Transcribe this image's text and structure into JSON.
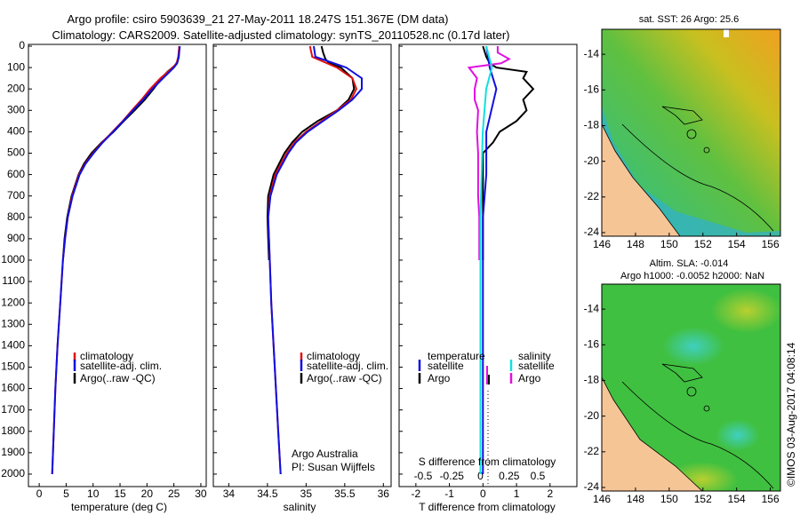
{
  "title_line1": "Argo profile: csiro 5903639_21 27-May-2011 18.247S 151.367E (DM data)",
  "title_line2": "Climatology: CARS2009. Satellite-adjusted climatology: synTS_20110528.nc (0.17d later)",
  "colors": {
    "climatology": "#e01010",
    "satellite": "#1010e0",
    "argo": "#000000",
    "salinity_satellite": "#10e0e0",
    "salinity_argo": "#e010e0",
    "land": "#f6c596"
  },
  "chart_data": [
    {
      "type": "line",
      "id": "temperature",
      "xlabel": "temperature (deg C)",
      "xlim": [
        -2,
        31
      ],
      "ylim": [
        0,
        2050
      ],
      "yticks": [
        0,
        100,
        200,
        300,
        400,
        500,
        600,
        700,
        800,
        900,
        1000,
        1100,
        1200,
        1300,
        1400,
        1500,
        1600,
        1700,
        1800,
        1900,
        2000
      ],
      "xticks": [
        0,
        5,
        10,
        15,
        20,
        25,
        30
      ],
      "legend": [
        "climatology",
        "satellite-adj. clim.",
        "Argo(..raw -QC)"
      ],
      "series": [
        {
          "name": "climatology",
          "depth": [
            0,
            50,
            80,
            100,
            150,
            200,
            250,
            300,
            350,
            400,
            450,
            500,
            550,
            600,
            700,
            800,
            900,
            1000,
            1200,
            1400,
            1600,
            1800,
            2000
          ],
          "values": [
            26.0,
            25.8,
            25.5,
            24.8,
            22.5,
            20.6,
            19.0,
            17.2,
            15.5,
            13.6,
            11.7,
            10.0,
            8.5,
            7.4,
            6.1,
            5.3,
            4.8,
            4.4,
            3.9,
            3.4,
            3.0,
            2.7,
            2.4
          ]
        },
        {
          "name": "satellite",
          "depth": [
            0,
            50,
            80,
            100,
            150,
            200,
            250,
            300,
            350,
            400,
            450,
            500,
            550,
            600,
            700,
            800,
            900,
            1000,
            1200,
            1400,
            1600,
            1800,
            2000
          ],
          "values": [
            26.1,
            25.9,
            25.6,
            25.0,
            23.0,
            21.0,
            19.3,
            17.4,
            15.6,
            13.7,
            11.8,
            10.1,
            8.6,
            7.5,
            6.2,
            5.3,
            4.8,
            4.4,
            3.9,
            3.4,
            3.0,
            2.7,
            2.4
          ]
        },
        {
          "name": "argo",
          "depth": [
            0,
            50,
            70,
            90,
            120,
            150,
            200,
            250,
            300,
            350,
            400,
            450,
            500,
            550,
            600,
            700,
            800,
            900,
            1000
          ],
          "values": [
            26.0,
            25.9,
            25.7,
            25.2,
            23.8,
            22.7,
            21.2,
            19.6,
            17.7,
            15.7,
            13.8,
            11.6,
            9.7,
            8.3,
            7.3,
            6.0,
            5.2,
            4.7,
            4.4
          ]
        }
      ]
    },
    {
      "type": "line",
      "id": "salinity",
      "xlabel": "salinity",
      "xlim": [
        33.8,
        36.1
      ],
      "ylim": [
        0,
        2050
      ],
      "xticks": [
        34,
        34.5,
        35,
        35.5,
        36
      ],
      "legend": [
        "climatology",
        "satellite-adj. clim.",
        "Argo(..raw -QC)"
      ],
      "annotation": [
        "Argo Australia",
        "PI: Susan Wijffels"
      ],
      "series": [
        {
          "name": "climatology",
          "depth": [
            0,
            50,
            100,
            150,
            200,
            250,
            300,
            350,
            400,
            450,
            500,
            600,
            700,
            800,
            900,
            1000,
            1200,
            1400,
            1600,
            1800,
            2000
          ],
          "values": [
            35.05,
            35.08,
            35.4,
            35.6,
            35.65,
            35.58,
            35.4,
            35.2,
            35.0,
            34.85,
            34.75,
            34.6,
            34.53,
            34.51,
            34.52,
            34.53,
            34.55,
            34.58,
            34.61,
            34.64,
            34.67
          ]
        },
        {
          "name": "satellite",
          "depth": [
            0,
            50,
            100,
            150,
            200,
            250,
            300,
            350,
            400,
            450,
            500,
            600,
            700,
            800,
            900,
            1000,
            1200,
            1400,
            1600,
            1800,
            2000
          ],
          "values": [
            35.1,
            35.12,
            35.52,
            35.72,
            35.72,
            35.6,
            35.42,
            35.22,
            35.02,
            34.87,
            34.77,
            34.62,
            34.54,
            34.51,
            34.52,
            34.53,
            34.55,
            34.58,
            34.61,
            34.64,
            34.67
          ]
        },
        {
          "name": "argo",
          "depth": [
            0,
            30,
            60,
            80,
            100,
            150,
            200,
            250,
            300,
            350,
            400,
            450,
            500,
            600,
            700,
            800,
            900,
            1000
          ],
          "values": [
            35.2,
            35.22,
            35.25,
            35.3,
            35.45,
            35.6,
            35.62,
            35.55,
            35.4,
            35.15,
            34.95,
            34.82,
            34.72,
            34.58,
            34.51,
            34.5,
            34.51,
            34.52
          ]
        }
      ]
    },
    {
      "type": "line",
      "id": "differences",
      "xlabel": "T difference from climatology",
      "xlabel_top": "S difference from climatology",
      "xlim": [
        -2.5,
        2.8
      ],
      "xticks": [
        -2,
        -1,
        0,
        1,
        2
      ],
      "xticks_top": [
        -0.5,
        -0.25,
        0,
        0.25,
        0.5
      ],
      "ylim": [
        0,
        2050
      ],
      "legend_temperature_title": "temperature",
      "legend_salinity_title": "salinity",
      "legend_items": [
        "satellite",
        "Argo"
      ],
      "series": [
        {
          "name": "T satellite",
          "depth": [
            0,
            100,
            200,
            400,
            600,
            800,
            1000,
            1500,
            2000
          ],
          "values": [
            0.1,
            0.2,
            0.4,
            0.1,
            0.1,
            0.0,
            0.0,
            0.0,
            0.0
          ]
        },
        {
          "name": "T argo",
          "depth": [
            0,
            50,
            80,
            100,
            120,
            150,
            200,
            250,
            300,
            350,
            400,
            450,
            500,
            600,
            700,
            800,
            900,
            1000
          ],
          "values": [
            0.0,
            0.1,
            0.2,
            0.4,
            1.3,
            1.2,
            1.5,
            1.2,
            1.3,
            1.0,
            0.5,
            0.3,
            0.0,
            0.0,
            0.0,
            0.0,
            0.0,
            0.0
          ]
        },
        {
          "name": "S satellite",
          "depth": [
            0,
            100,
            200,
            400,
            600,
            800,
            1000,
            1500,
            2000
          ],
          "values": [
            0.05,
            0.1,
            0.05,
            0.02,
            0.01,
            0.0,
            0.0,
            0.0,
            0.0
          ]
        },
        {
          "name": "S argo",
          "depth": [
            0,
            30,
            60,
            80,
            100,
            150,
            200,
            250,
            300,
            400,
            500,
            600,
            700,
            800,
            900,
            1000
          ],
          "values": [
            0.15,
            0.15,
            0.25,
            0.18,
            -0.1,
            -0.03,
            -0.05,
            -0.05,
            -0.02,
            -0.03,
            -0.02,
            -0.02,
            -0.02,
            -0.01,
            -0.01,
            -0.01
          ]
        }
      ]
    },
    {
      "type": "heatmap",
      "id": "sst_map",
      "title": "sat. SST: 26 Argo: 25.6",
      "xticks": [
        146,
        148,
        150,
        152,
        154,
        156
      ],
      "yticks": [
        -14,
        -16,
        -18,
        -20,
        -22,
        -24
      ],
      "xlim": [
        146,
        156.6
      ],
      "ylim": [
        -24.2,
        -12.6
      ]
    },
    {
      "type": "heatmap",
      "id": "sla_map",
      "title_line1": "Altim. SLA: -0.014",
      "title_line2": "Argo h1000: -0.0052 h2000: NaN",
      "xticks": [
        146,
        148,
        150,
        152,
        154,
        156
      ],
      "yticks": [
        -14,
        -16,
        -18,
        -20,
        -22,
        -24
      ],
      "xlim": [
        146,
        156.6
      ],
      "ylim": [
        -24.2,
        -12.6
      ]
    }
  ],
  "stamp": "©IMOS 03-Aug-2017 04:08:14"
}
